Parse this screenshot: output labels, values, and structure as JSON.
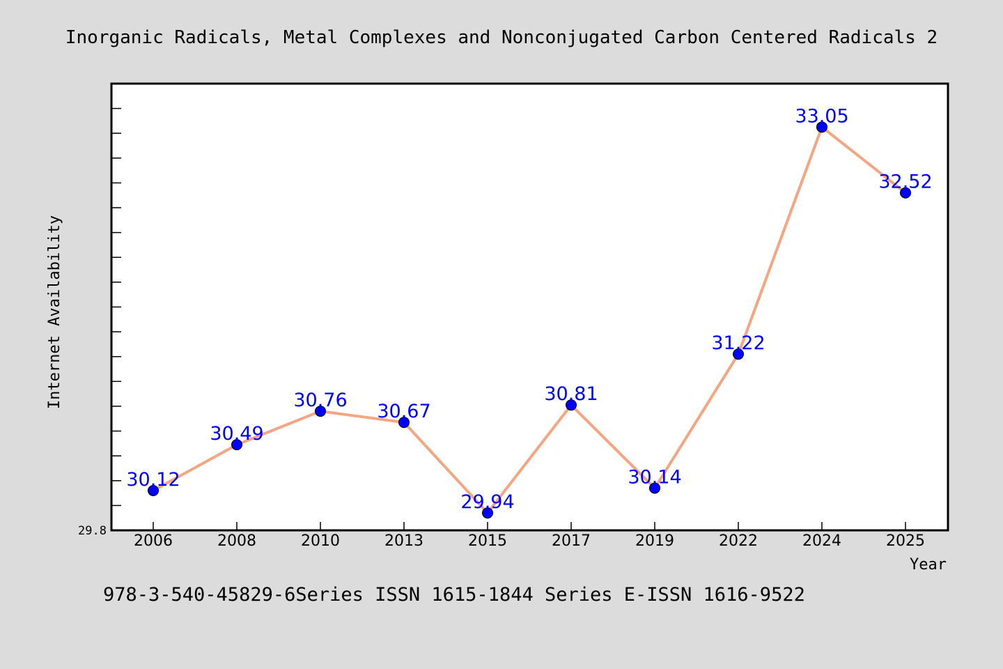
{
  "chart_data": {
    "type": "line",
    "title": "Inorganic Radicals, Metal Complexes and Nonconjugated Carbon Centered Radicals 2",
    "xlabel": "Year",
    "ylabel": "Internet Availability",
    "categories": [
      "2006",
      "2008",
      "2010",
      "2013",
      "2015",
      "2017",
      "2019",
      "2022",
      "2024",
      "2025"
    ],
    "values": [
      30.12,
      30.49,
      30.76,
      30.67,
      29.94,
      30.81,
      30.14,
      31.22,
      33.05,
      32.52
    ],
    "data_labels": [
      "30.12",
      "30.49",
      "30.76",
      "30.67",
      "29.94",
      "30.81",
      "30.14",
      "31.22",
      "33.05",
      "32.52"
    ],
    "ylim": [
      29.8,
      33.4
    ],
    "y_tick_labels": [
      "29.8"
    ],
    "grid": false,
    "legend": "none",
    "footer": "978-3-540-45829-6Series ISSN 1615-1844 Series E-ISSN 1616-9522",
    "colors": {
      "background": "#dcdcdc",
      "plot_background": "#ffffff",
      "line": "#f4a582",
      "marker": "#0000ff",
      "data_label": "#0000ff",
      "axis": "#000000"
    }
  }
}
